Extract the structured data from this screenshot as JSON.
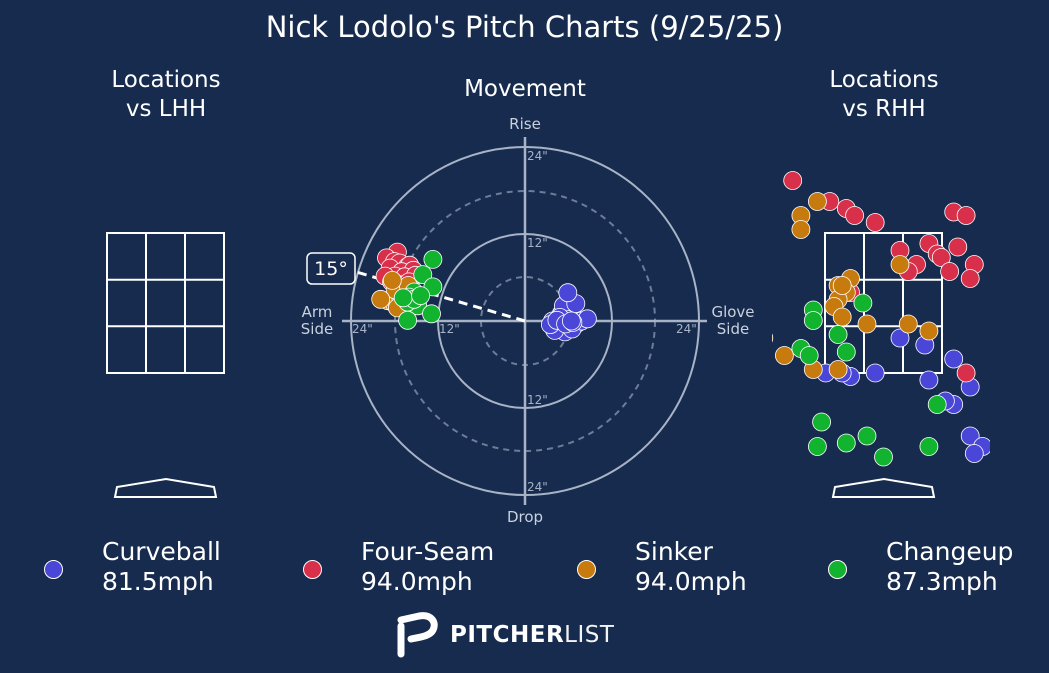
{
  "title": "Nick Lodolo's Pitch Charts (9/25/25)",
  "panels": {
    "lhh_title": "Locations\nvs LHH",
    "movement_title": "Movement",
    "rhh_title": "Locations\nvs RHH"
  },
  "movement_axis": {
    "top": "Rise",
    "bottom": "Drop",
    "left": "Arm\nSide",
    "right": "Glove\nSide",
    "ring_labels": [
      "12\"",
      "24\""
    ],
    "arm_angle": "15°"
  },
  "colors": {
    "background": "#162b4e",
    "Curveball": "#4a47d8",
    "Four-Seam": "#d8304a",
    "Sinker": "#c77a0e",
    "Changeup": "#12b32f"
  },
  "legend": [
    {
      "name": "Curveball",
      "speed": "81.5mph"
    },
    {
      "name": "Four-Seam",
      "speed": "94.0mph"
    },
    {
      "name": "Sinker",
      "speed": "94.0mph"
    },
    {
      "name": "Changeup",
      "speed": "87.3mph"
    }
  ],
  "brand": {
    "bold": "PITCHER",
    "light": "LIST"
  },
  "chart_data": [
    {
      "type": "scatter",
      "name": "movement",
      "xlim": [
        -27,
        27
      ],
      "ylim": [
        -27,
        27
      ],
      "series": [
        {
          "name": "Curveball",
          "points": [
            [
              5.0,
              1.0
            ],
            [
              5.7,
              0.7
            ],
            [
              6.8,
              0.4
            ],
            [
              7.2,
              -0.3
            ],
            [
              5.2,
              -0.7
            ],
            [
              6.2,
              1.3
            ],
            [
              4.6,
              0.2
            ],
            [
              5.5,
              -1.5
            ],
            [
              6.5,
              -1.1
            ],
            [
              7.8,
              0.0
            ],
            [
              4.3,
              -0.6
            ],
            [
              5.3,
              2.1
            ],
            [
              6.0,
              0.2
            ],
            [
              4.8,
              0.5
            ],
            [
              4.1,
              -1.3
            ],
            [
              8.6,
              0.3
            ],
            [
              7.0,
              2.4
            ],
            [
              3.8,
              0.0
            ],
            [
              3.5,
              -0.5
            ],
            [
              4.4,
              0.1
            ],
            [
              5.6,
              -0.4
            ],
            [
              6.6,
              -0.2
            ],
            [
              6.4,
              0.0
            ],
            [
              5.9,
              3.9
            ]
          ]
        },
        {
          "name": "Four-Seam",
          "points": [
            [
              -17.6,
              9.5
            ],
            [
              -19.1,
              8.7
            ],
            [
              -18.0,
              8.2
            ],
            [
              -17.3,
              8.0
            ],
            [
              -16.2,
              7.5
            ],
            [
              -15.9,
              7.7
            ],
            [
              -18.6,
              7.3
            ],
            [
              -17.0,
              6.8
            ],
            [
              -15.4,
              7.0
            ],
            [
              -17.9,
              6.2
            ],
            [
              -19.3,
              6.2
            ],
            [
              -16.6,
              6.1
            ],
            [
              -15.1,
              6.3
            ],
            [
              -18.4,
              5.4
            ],
            [
              -17.2,
              5.0
            ],
            [
              -16.0,
              5.4
            ]
          ]
        },
        {
          "name": "Sinker",
          "points": [
            [
              -18.9,
              2.8
            ],
            [
              -18.0,
              2.4
            ],
            [
              -17.1,
              3.0
            ],
            [
              -16.5,
              3.4
            ],
            [
              -15.5,
              3.8
            ],
            [
              -17.9,
              4.3
            ],
            [
              -16.1,
              4.9
            ],
            [
              -18.3,
              5.6
            ],
            [
              -19.9,
              3.0
            ],
            [
              -17.6,
              1.8
            ]
          ]
        },
        {
          "name": "Changeup",
          "points": [
            [
              -12.7,
              8.5
            ],
            [
              -14.1,
              6.4
            ],
            [
              -12.7,
              4.7
            ],
            [
              -15.3,
              4.0
            ],
            [
              -16.0,
              3.3
            ],
            [
              -14.8,
              2.1
            ],
            [
              -16.2,
              2.6
            ],
            [
              -15.3,
              3.0
            ],
            [
              -16.8,
              3.2
            ],
            [
              -14.4,
              3.5
            ],
            [
              -12.9,
              1.0
            ],
            [
              -16.2,
              0.1
            ]
          ]
        }
      ]
    },
    {
      "type": "scatter",
      "name": "locations_vs_lhh",
      "series": [
        {
          "name": "Curveball",
          "points": []
        },
        {
          "name": "Four-Seam",
          "points": []
        },
        {
          "name": "Sinker",
          "points": []
        },
        {
          "name": "Changeup",
          "points": []
        }
      ]
    },
    {
      "type": "scatter",
      "name": "locations_vs_rhh",
      "xlim": [
        -2.77,
        2.77
      ],
      "ylim": [
        -0.8,
        4.96
      ],
      "series": [
        {
          "name": "Curveball",
          "points": [
            [
              0.2,
              2.0
            ],
            [
              0.5,
              1.9
            ],
            [
              0.55,
              1.4
            ],
            [
              0.85,
              1.05
            ],
            [
              0.75,
              1.1
            ],
            [
              1.05,
              1.3
            ],
            [
              1.5,
              0.85
            ],
            [
              1.65,
              0.75
            ],
            [
              1.05,
              0.6
            ],
            [
              1.5,
              0.55
            ],
            [
              1.95,
              0.45
            ],
            [
              1.2,
              0.45
            ],
            [
              1.8,
              0.25
            ],
            [
              1.1,
              0.35
            ],
            [
              -0.7,
              1.5
            ],
            [
              -0.4,
              1.45
            ],
            [
              -0.5,
              1.5
            ],
            [
              -0.1,
              1.5
            ],
            [
              0.85,
              1.7
            ],
            [
              1.9,
              -0.1
            ],
            [
              2.75,
              0.2
            ],
            [
              -2.1,
              2.0
            ],
            [
              -1.7,
              1.4
            ]
          ]
        },
        {
          "name": "Four-Seam",
          "points": [
            [
              -1.1,
              4.25
            ],
            [
              -0.65,
              3.95
            ],
            [
              -0.45,
              3.85
            ],
            [
              -0.35,
              3.75
            ],
            [
              -0.1,
              3.65
            ],
            [
              0.85,
              3.8
            ],
            [
              1.0,
              3.75
            ],
            [
              0.55,
              3.35
            ],
            [
              0.2,
              3.25
            ],
            [
              0.65,
              3.2
            ],
            [
              0.9,
              3.3
            ],
            [
              1.45,
              3.25
            ],
            [
              0.4,
              3.05
            ],
            [
              0.7,
              3.15
            ],
            [
              1.1,
              3.05
            ],
            [
              1.05,
              2.85
            ],
            [
              0.3,
              2.95
            ],
            [
              0.8,
              2.95
            ],
            [
              -0.4,
              2.65
            ],
            [
              -2.35,
              3.95
            ],
            [
              -2.0,
              3.35
            ],
            [
              -1.95,
              4.55
            ],
            [
              2.85,
              2.4
            ],
            [
              1.0,
              1.5
            ],
            [
              1.45,
              1.5
            ],
            [
              -2.5,
              4.6
            ]
          ]
        },
        {
          "name": "Sinker",
          "points": [
            [
              -0.8,
              3.95
            ],
            [
              -1.0,
              3.75
            ],
            [
              -1.0,
              3.55
            ],
            [
              -0.4,
              2.85
            ],
            [
              -0.45,
              2.65
            ],
            [
              -0.55,
              2.75
            ],
            [
              0.2,
              3.05
            ],
            [
              -0.55,
              2.55
            ],
            [
              -0.6,
              2.45
            ],
            [
              -0.5,
              2.3
            ],
            [
              0.3,
              2.2
            ],
            [
              0.55,
              2.1
            ],
            [
              -0.2,
              2.2
            ],
            [
              -1.2,
              1.75
            ],
            [
              -0.85,
              1.55
            ],
            [
              -0.55,
              1.55
            ],
            [
              -1.8,
              1.6
            ],
            [
              -1.45,
              2.0
            ],
            [
              -0.5,
              2.75
            ]
          ]
        },
        {
          "name": "Changeup",
          "points": [
            [
              -0.85,
              2.4
            ],
            [
              -0.85,
              2.25
            ],
            [
              -0.25,
              2.5
            ],
            [
              -0.55,
              2.05
            ],
            [
              -1.0,
              1.85
            ],
            [
              -0.45,
              1.8
            ],
            [
              -0.9,
              1.75
            ],
            [
              -0.75,
              0.8
            ],
            [
              -0.2,
              0.6
            ],
            [
              0.0,
              0.3
            ],
            [
              -0.45,
              0.5
            ],
            [
              -0.8,
              0.45
            ],
            [
              0.65,
              1.05
            ],
            [
              0.55,
              0.45
            ],
            [
              -1.95,
              2.0
            ]
          ]
        }
      ]
    }
  ]
}
